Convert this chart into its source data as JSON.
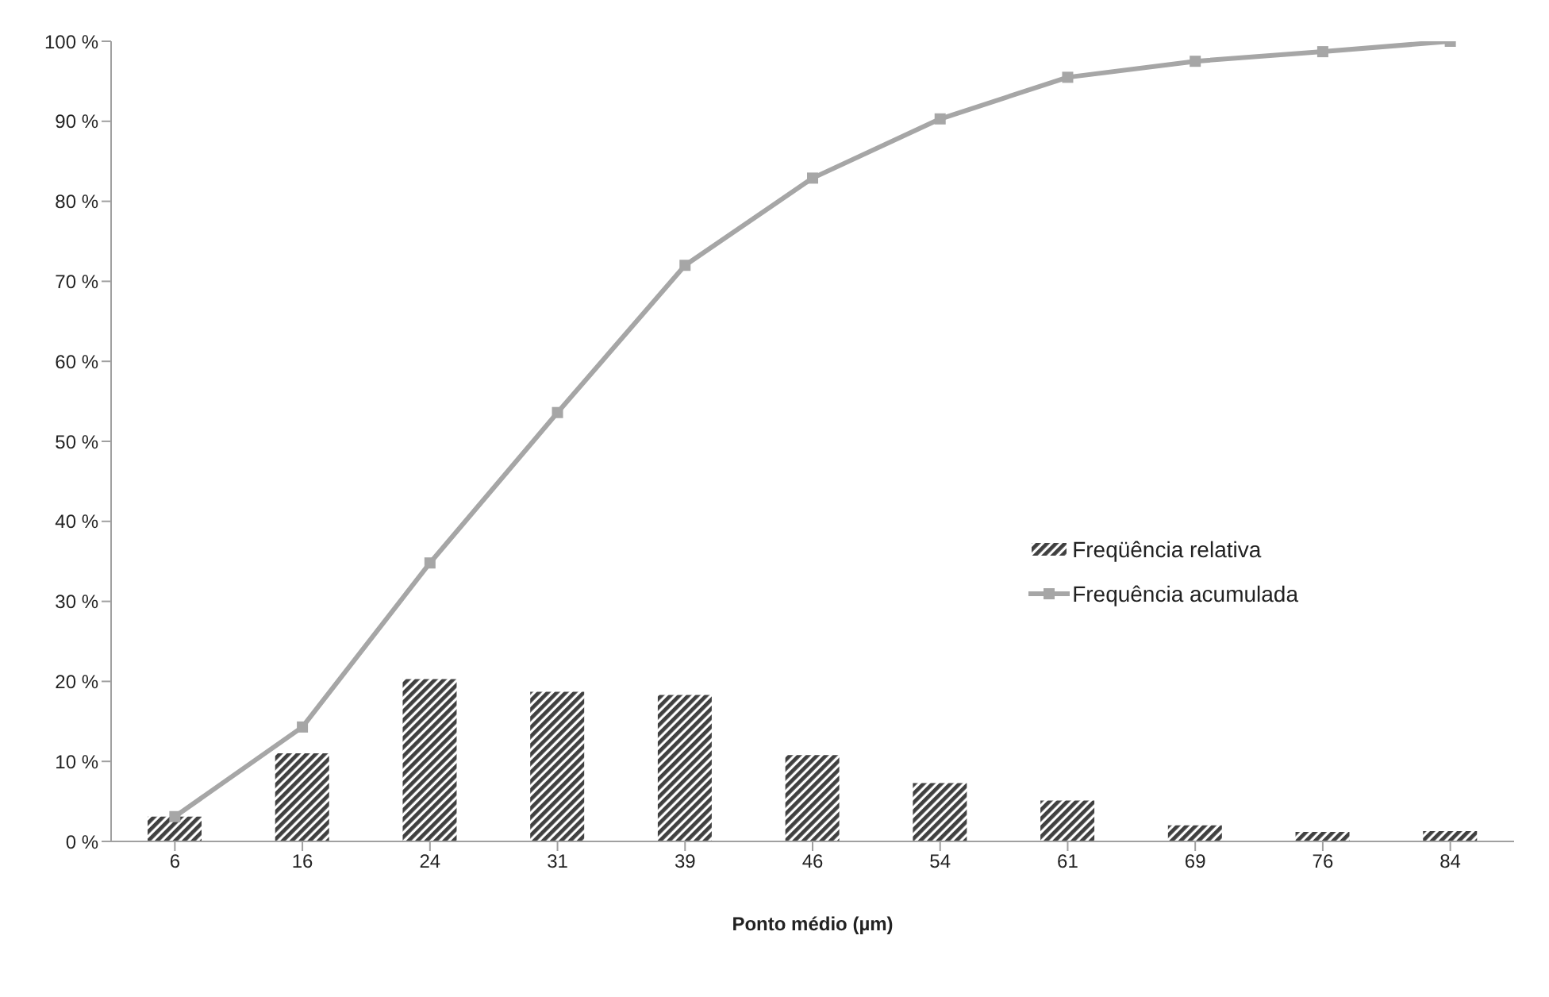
{
  "chart_data": {
    "type": "bar",
    "xlabel": "Ponto médio (µm)",
    "categories": [
      "6",
      "16",
      "24",
      "31",
      "39",
      "46",
      "54",
      "61",
      "69",
      "76",
      "84"
    ],
    "series": [
      {
        "name": "Freqüência relativa",
        "color": "#404040",
        "values": [
          3.1,
          11,
          20.3,
          18.7,
          18.3,
          10.8,
          7.3,
          5.1,
          2,
          1.2,
          1.3
        ]
      },
      {
        "name": "Frequência acumulada",
        "type": "line",
        "color": "#a6a6a6",
        "values": [
          3.1,
          14.3,
          34.8,
          53.6,
          72,
          82.9,
          90.3,
          95.5,
          97.5,
          98.7,
          100
        ]
      }
    ],
    "ylim": [
      0,
      100
    ],
    "yticks": [
      {
        "value": 0,
        "label": "0 %"
      },
      {
        "value": 10,
        "label": "10 %"
      },
      {
        "value": 20,
        "label": "20 %"
      },
      {
        "value": 30,
        "label": "30 %"
      },
      {
        "value": 40,
        "label": "40 %"
      },
      {
        "value": 50,
        "label": "50 %"
      },
      {
        "value": 60,
        "label": "60 %"
      },
      {
        "value": 70,
        "label": "70 %"
      },
      {
        "value": 80,
        "label": "80 %"
      },
      {
        "value": 90,
        "label": "90 %"
      },
      {
        "value": 100,
        "label": "100 %"
      }
    ],
    "grid": false,
    "legend": "right",
    "marker": "square",
    "line_style": "solid"
  }
}
